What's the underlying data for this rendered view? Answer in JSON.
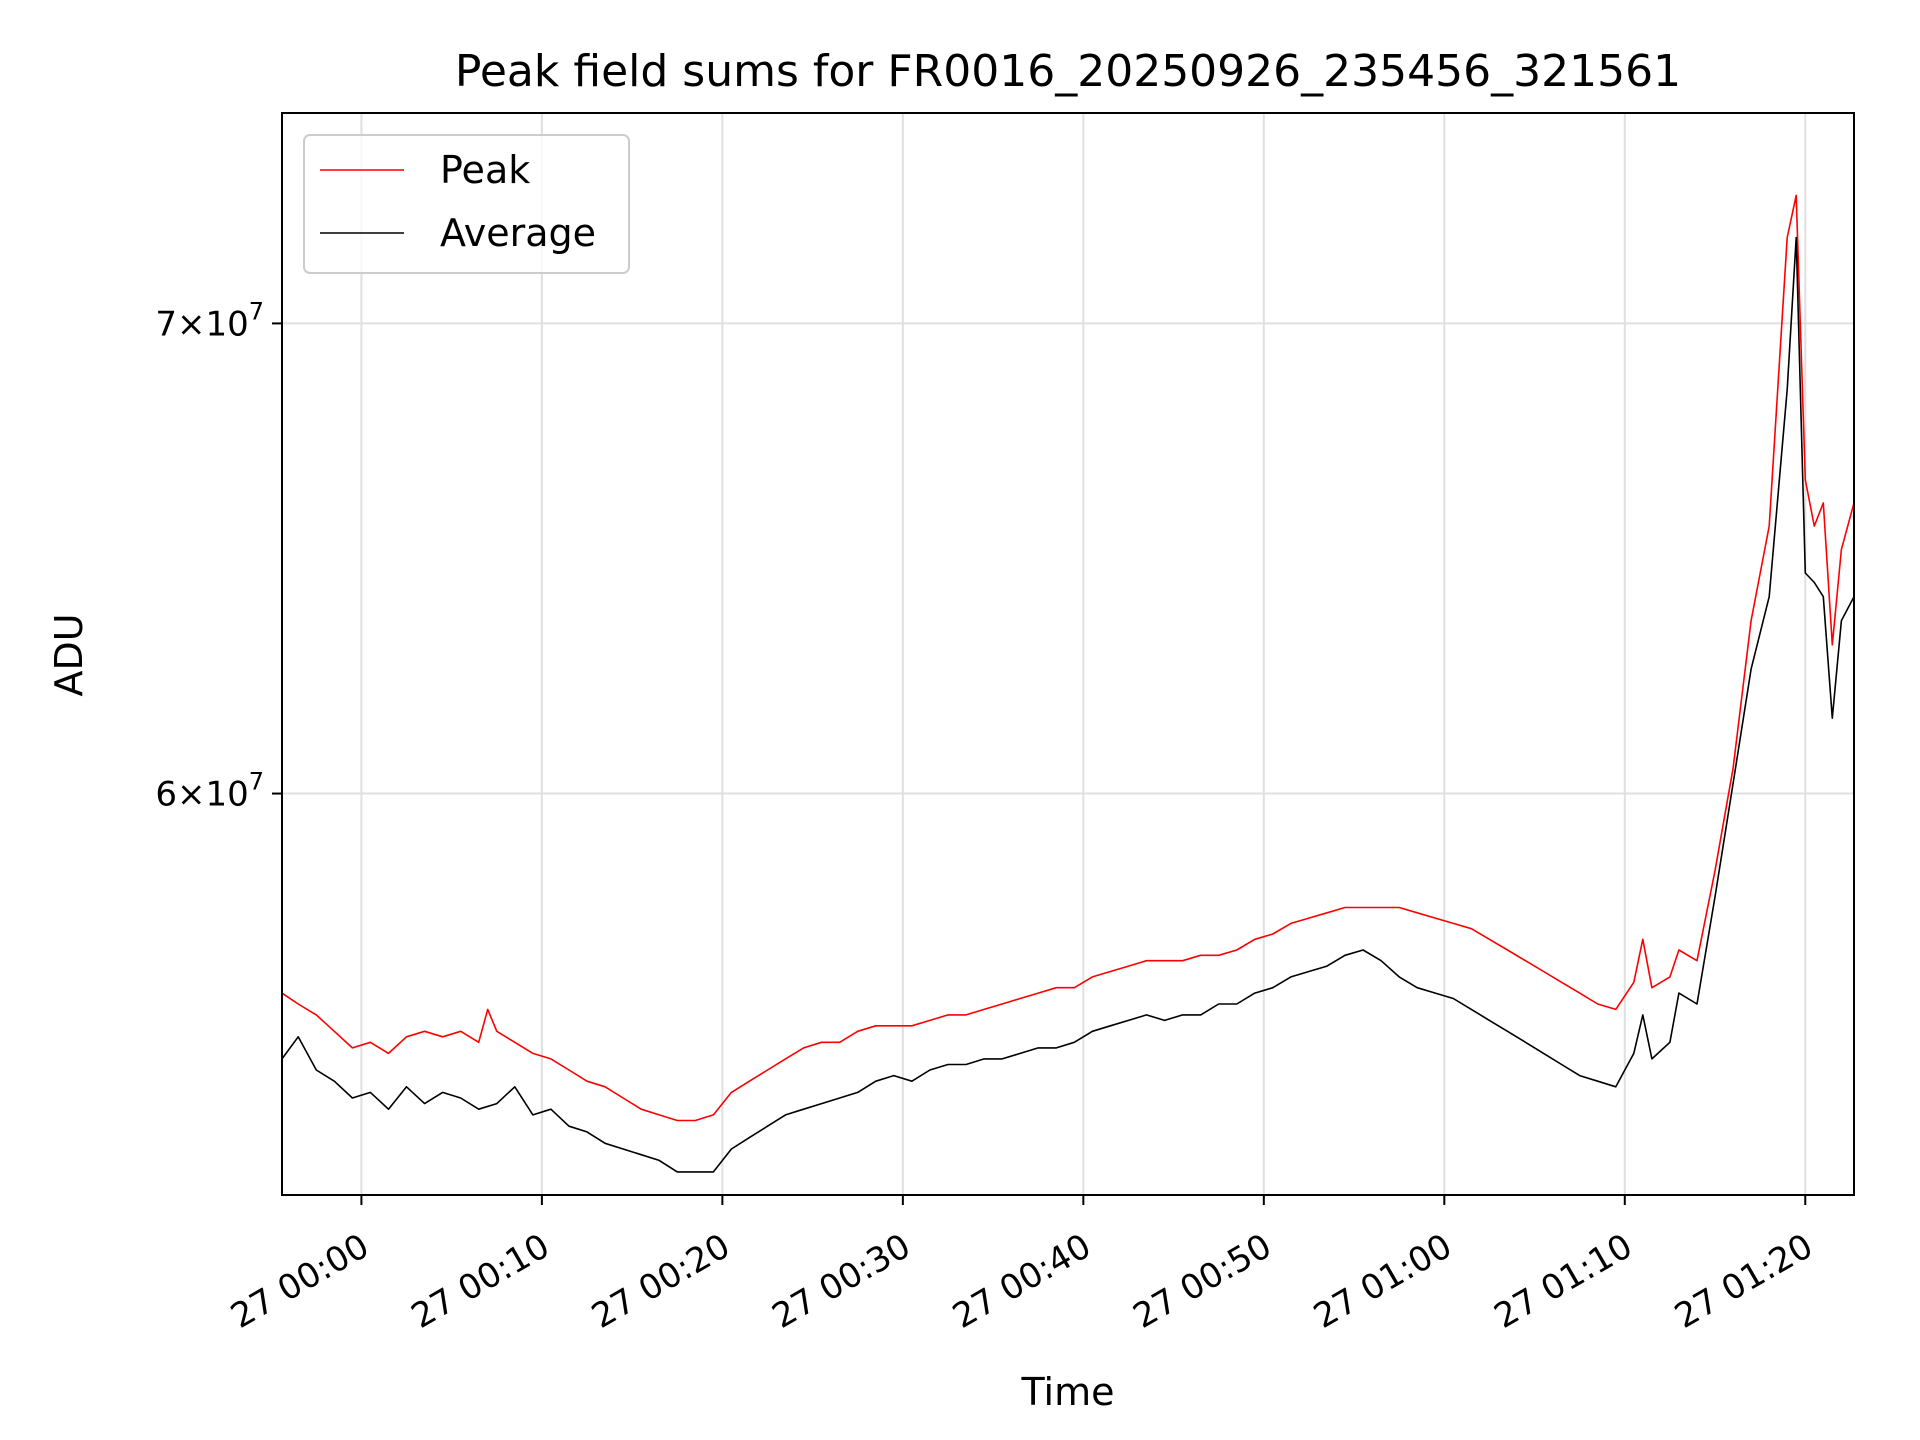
{
  "chart_data": {
    "type": "line",
    "title": "Peak field sums for FR0016_20250926_235456_321561",
    "xlabel": "Time",
    "ylabel": "ADU",
    "y_scale": "log",
    "grid": true,
    "legend_position": "top-left",
    "x_unit": "minutes since 27 00:00",
    "xlim": [
      -4.4,
      82.7
    ],
    "ylim": [
      52600000,
      75000000
    ],
    "x_ticks": [
      {
        "value": 0,
        "label": "27 00:00"
      },
      {
        "value": 10,
        "label": "27 00:10"
      },
      {
        "value": 20,
        "label": "27 00:20"
      },
      {
        "value": 30,
        "label": "27 00:30"
      },
      {
        "value": 40,
        "label": "27 00:40"
      },
      {
        "value": 50,
        "label": "27 00:50"
      },
      {
        "value": 60,
        "label": "27 01:00"
      },
      {
        "value": 70,
        "label": "27 01:10"
      },
      {
        "value": 80,
        "label": "27 01:20"
      }
    ],
    "y_ticks": [
      {
        "value": 60000000,
        "base": "6",
        "exp": "7"
      },
      {
        "value": 70000000,
        "base": "7",
        "exp": "7"
      }
    ],
    "series": [
      {
        "name": "Peak",
        "color": "#ff0000",
        "points": [
          [
            -4.4,
            56.2
          ],
          [
            -3.5,
            56.0
          ],
          [
            -2.5,
            55.8
          ],
          [
            -1.5,
            55.5
          ],
          [
            -0.5,
            55.2
          ],
          [
            0.5,
            55.3
          ],
          [
            1.5,
            55.1
          ],
          [
            2.5,
            55.4
          ],
          [
            3.5,
            55.5
          ],
          [
            4.5,
            55.4
          ],
          [
            5.5,
            55.5
          ],
          [
            6.5,
            55.3
          ],
          [
            7.0,
            55.9
          ],
          [
            7.5,
            55.5
          ],
          [
            8.5,
            55.3
          ],
          [
            9.5,
            55.1
          ],
          [
            10.5,
            55.0
          ],
          [
            11.5,
            54.8
          ],
          [
            12.5,
            54.6
          ],
          [
            13.5,
            54.5
          ],
          [
            14.5,
            54.3
          ],
          [
            15.5,
            54.1
          ],
          [
            16.5,
            54.0
          ],
          [
            17.5,
            53.9
          ],
          [
            18.5,
            53.9
          ],
          [
            19.5,
            54.0
          ],
          [
            20.5,
            54.4
          ],
          [
            21.5,
            54.6
          ],
          [
            22.5,
            54.8
          ],
          [
            23.5,
            55.0
          ],
          [
            24.5,
            55.2
          ],
          [
            25.5,
            55.3
          ],
          [
            26.5,
            55.3
          ],
          [
            27.5,
            55.5
          ],
          [
            28.5,
            55.6
          ],
          [
            29.5,
            55.6
          ],
          [
            30.5,
            55.6
          ],
          [
            31.5,
            55.7
          ],
          [
            32.5,
            55.8
          ],
          [
            33.5,
            55.8
          ],
          [
            34.5,
            55.9
          ],
          [
            35.5,
            56.0
          ],
          [
            36.5,
            56.1
          ],
          [
            37.5,
            56.2
          ],
          [
            38.5,
            56.3
          ],
          [
            39.5,
            56.3
          ],
          [
            40.5,
            56.5
          ],
          [
            41.5,
            56.6
          ],
          [
            42.5,
            56.7
          ],
          [
            43.5,
            56.8
          ],
          [
            44.5,
            56.8
          ],
          [
            45.5,
            56.8
          ],
          [
            46.5,
            56.9
          ],
          [
            47.5,
            56.9
          ],
          [
            48.5,
            57.0
          ],
          [
            49.5,
            57.2
          ],
          [
            50.5,
            57.3
          ],
          [
            51.5,
            57.5
          ],
          [
            52.5,
            57.6
          ],
          [
            53.5,
            57.7
          ],
          [
            54.5,
            57.8
          ],
          [
            55.5,
            57.8
          ],
          [
            56.5,
            57.8
          ],
          [
            57.5,
            57.8
          ],
          [
            58.5,
            57.7
          ],
          [
            59.5,
            57.6
          ],
          [
            60.5,
            57.5
          ],
          [
            61.5,
            57.4
          ],
          [
            62.5,
            57.2
          ],
          [
            63.5,
            57.0
          ],
          [
            64.5,
            56.8
          ],
          [
            65.5,
            56.6
          ],
          [
            66.5,
            56.4
          ],
          [
            67.5,
            56.2
          ],
          [
            68.5,
            56.0
          ],
          [
            69.5,
            55.9
          ],
          [
            70.5,
            56.4
          ],
          [
            71.0,
            57.2
          ],
          [
            71.5,
            56.3
          ],
          [
            72.5,
            56.5
          ],
          [
            73.0,
            57.0
          ],
          [
            74.0,
            56.8
          ],
          [
            75.0,
            58.5
          ],
          [
            76.0,
            60.5
          ],
          [
            77.0,
            63.5
          ],
          [
            78.0,
            65.5
          ],
          [
            79.0,
            72.0
          ],
          [
            79.5,
            73.0
          ],
          [
            80.0,
            66.5
          ],
          [
            80.5,
            65.5
          ],
          [
            81.0,
            66.0
          ],
          [
            81.5,
            63.0
          ],
          [
            82.0,
            65.0
          ],
          [
            82.7,
            66.0
          ]
        ]
      },
      {
        "name": "Average",
        "color": "#000000",
        "points": [
          [
            -4.4,
            55.0
          ],
          [
            -3.5,
            55.4
          ],
          [
            -2.5,
            54.8
          ],
          [
            -1.5,
            54.6
          ],
          [
            -0.5,
            54.3
          ],
          [
            0.5,
            54.4
          ],
          [
            1.5,
            54.1
          ],
          [
            2.5,
            54.5
          ],
          [
            3.5,
            54.2
          ],
          [
            4.5,
            54.4
          ],
          [
            5.5,
            54.3
          ],
          [
            6.5,
            54.1
          ],
          [
            7.5,
            54.2
          ],
          [
            8.5,
            54.5
          ],
          [
            9.5,
            54.0
          ],
          [
            10.5,
            54.1
          ],
          [
            11.5,
            53.8
          ],
          [
            12.5,
            53.7
          ],
          [
            13.5,
            53.5
          ],
          [
            14.5,
            53.4
          ],
          [
            15.5,
            53.3
          ],
          [
            16.5,
            53.2
          ],
          [
            17.5,
            53.0
          ],
          [
            18.5,
            53.0
          ],
          [
            19.5,
            53.0
          ],
          [
            20.5,
            53.4
          ],
          [
            21.5,
            53.6
          ],
          [
            22.5,
            53.8
          ],
          [
            23.5,
            54.0
          ],
          [
            24.5,
            54.1
          ],
          [
            25.5,
            54.2
          ],
          [
            26.5,
            54.3
          ],
          [
            27.5,
            54.4
          ],
          [
            28.5,
            54.6
          ],
          [
            29.5,
            54.7
          ],
          [
            30.5,
            54.6
          ],
          [
            31.5,
            54.8
          ],
          [
            32.5,
            54.9
          ],
          [
            33.5,
            54.9
          ],
          [
            34.5,
            55.0
          ],
          [
            35.5,
            55.0
          ],
          [
            36.5,
            55.1
          ],
          [
            37.5,
            55.2
          ],
          [
            38.5,
            55.2
          ],
          [
            39.5,
            55.3
          ],
          [
            40.5,
            55.5
          ],
          [
            41.5,
            55.6
          ],
          [
            42.5,
            55.7
          ],
          [
            43.5,
            55.8
          ],
          [
            44.5,
            55.7
          ],
          [
            45.5,
            55.8
          ],
          [
            46.5,
            55.8
          ],
          [
            47.5,
            56.0
          ],
          [
            48.5,
            56.0
          ],
          [
            49.5,
            56.2
          ],
          [
            50.5,
            56.3
          ],
          [
            51.5,
            56.5
          ],
          [
            52.5,
            56.6
          ],
          [
            53.5,
            56.7
          ],
          [
            54.5,
            56.9
          ],
          [
            55.5,
            57.0
          ],
          [
            56.5,
            56.8
          ],
          [
            57.5,
            56.5
          ],
          [
            58.5,
            56.3
          ],
          [
            59.5,
            56.2
          ],
          [
            60.5,
            56.1
          ],
          [
            61.5,
            55.9
          ],
          [
            62.5,
            55.7
          ],
          [
            63.5,
            55.5
          ],
          [
            64.5,
            55.3
          ],
          [
            65.5,
            55.1
          ],
          [
            66.5,
            54.9
          ],
          [
            67.5,
            54.7
          ],
          [
            68.5,
            54.6
          ],
          [
            69.5,
            54.5
          ],
          [
            70.5,
            55.1
          ],
          [
            71.0,
            55.8
          ],
          [
            71.5,
            55.0
          ],
          [
            72.5,
            55.3
          ],
          [
            73.0,
            56.2
          ],
          [
            74.0,
            56.0
          ],
          [
            75.0,
            58.0
          ],
          [
            76.0,
            60.2
          ],
          [
            77.0,
            62.5
          ],
          [
            78.0,
            64.0
          ],
          [
            79.0,
            68.5
          ],
          [
            79.5,
            72.0
          ],
          [
            80.0,
            64.5
          ],
          [
            80.5,
            64.3
          ],
          [
            81.0,
            64.0
          ],
          [
            81.5,
            61.5
          ],
          [
            82.0,
            63.5
          ],
          [
            82.7,
            64.0
          ]
        ]
      }
    ],
    "y_values_unit": "millions of ADU"
  }
}
